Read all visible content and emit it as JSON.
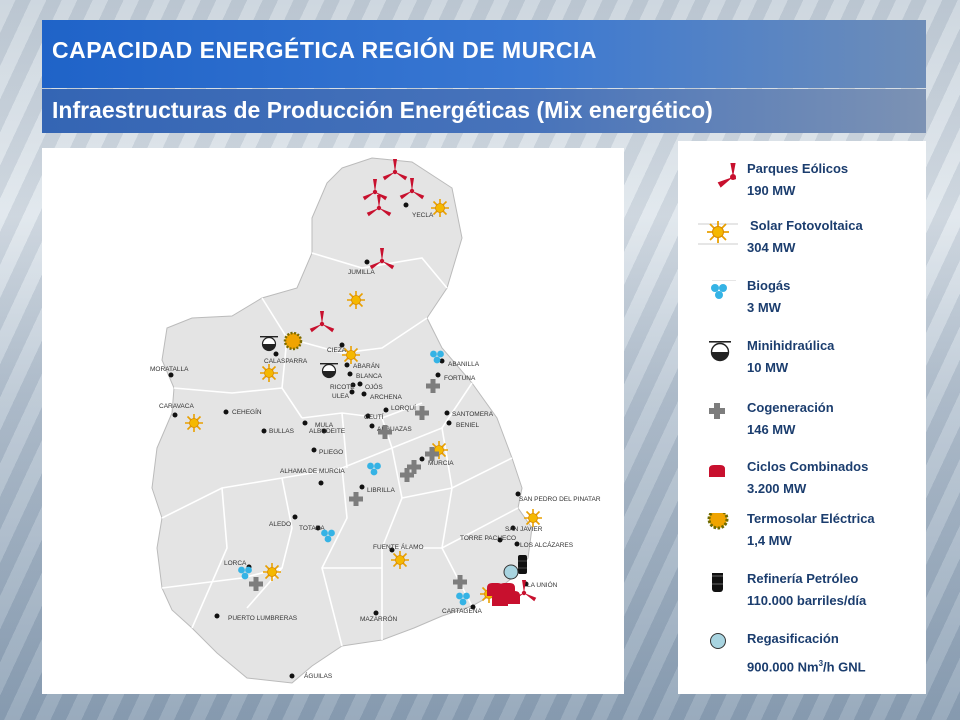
{
  "header": {
    "title": "CAPACIDAD ENERGÉTICA REGIÓN DE MURCIA",
    "subtitle": "Infraestructuras de Producción Energéticas (Mix energético)"
  },
  "legend": [
    {
      "icon": "wind-turbine-icon",
      "name": "Parques Eólicos",
      "value": "190 MW"
    },
    {
      "icon": "solar-sun-icon",
      "name": "Solar Fotovoltaica",
      "value": "304 MW"
    },
    {
      "icon": "biogas-drops-icon",
      "name": "Biogás",
      "value": "3 MW"
    },
    {
      "icon": "minihydro-icon",
      "name": "Minihidraúlica",
      "value": "10 MW"
    },
    {
      "icon": "cogeneration-cross-icon",
      "name": "Cogeneración",
      "value": "146 MW"
    },
    {
      "icon": "combined-cycle-icon",
      "name": "Ciclos Combinados",
      "value": "3.200 MW"
    },
    {
      "icon": "thermosolar-icon",
      "name": "Termosolar Eléctrica",
      "value": "1,4 MW"
    },
    {
      "icon": "oil-barrel-icon",
      "name": "Refinería Petróleo",
      "value": "110.000 barriles/día"
    },
    {
      "icon": "regasification-circle-icon",
      "name": "Regasificación",
      "value": "900.000 Nm",
      "value_sup": "3",
      "value_suffix": "/h GNL"
    }
  ],
  "map": {
    "cities": [
      "YECLA",
      "JUMILLA",
      "CIEZA",
      "CALASPARRA",
      "ABARÁN",
      "BLANCA",
      "ABANILLA",
      "FORTUNA",
      "RICOTE",
      "OJÓS",
      "ULEA",
      "ARCHENA",
      "MORATALLA",
      "CARAVACA",
      "CEHEGÍN",
      "LORQUÍ",
      "CEUTÍ",
      "SANTOMERA",
      "BENIEL",
      "MULA",
      "BULLAS",
      "ALBUDEITE",
      "ALGUAZAS",
      "PLIEGO",
      "MURCIA",
      "LIBRILLA",
      "ALHAMA DE MURCIA",
      "SAN PEDRO DEL PINATAR",
      "SAN JAVIER",
      "ALEDO",
      "TOTANA",
      "TORRE PACHECO",
      "LOS ALCÁZARES",
      "FUENTE ÁLAMO",
      "LORCA",
      "LA UNIÓN",
      "CARTAGENA",
      "PUERTO LUMBRERAS",
      "MAZARRÓN",
      "ÁGUILAS"
    ]
  }
}
